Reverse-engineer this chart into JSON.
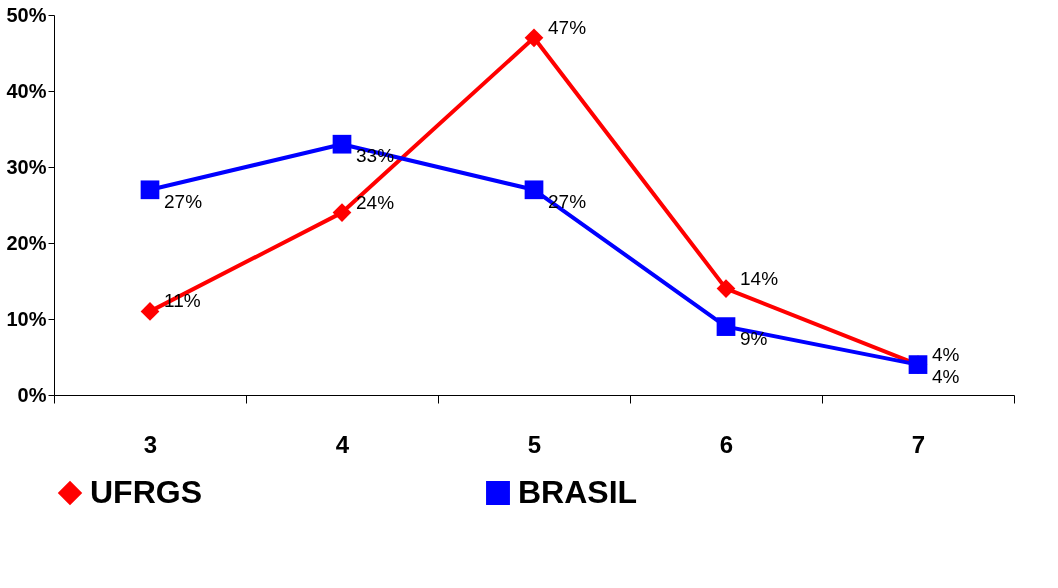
{
  "chart_data": {
    "type": "line",
    "categories": [
      "3",
      "4",
      "5",
      "6",
      "7"
    ],
    "series": [
      {
        "name": "UFRGS",
        "color": "#ff0000",
        "marker": "diamond",
        "values": [
          11,
          24,
          47,
          14,
          4
        ],
        "value_labels": [
          "11%",
          "24%",
          "47%",
          "14%",
          "4%"
        ]
      },
      {
        "name": "BRASIL",
        "color": "#0000ff",
        "marker": "square",
        "values": [
          27,
          33,
          27,
          9,
          4
        ],
        "value_labels": [
          "27%",
          "33%",
          "27%",
          "9%",
          "4%"
        ]
      }
    ],
    "ylim": [
      0,
      50
    ],
    "yticks": [
      {
        "value": 0,
        "label": "0%"
      },
      {
        "value": 10,
        "label": "10%"
      },
      {
        "value": 20,
        "label": "20%"
      },
      {
        "value": 30,
        "label": "30%"
      },
      {
        "value": 40,
        "label": "40%"
      },
      {
        "value": 50,
        "label": "50%"
      }
    ],
    "grid": false,
    "legend": "bottom",
    "line_style": "solid"
  }
}
